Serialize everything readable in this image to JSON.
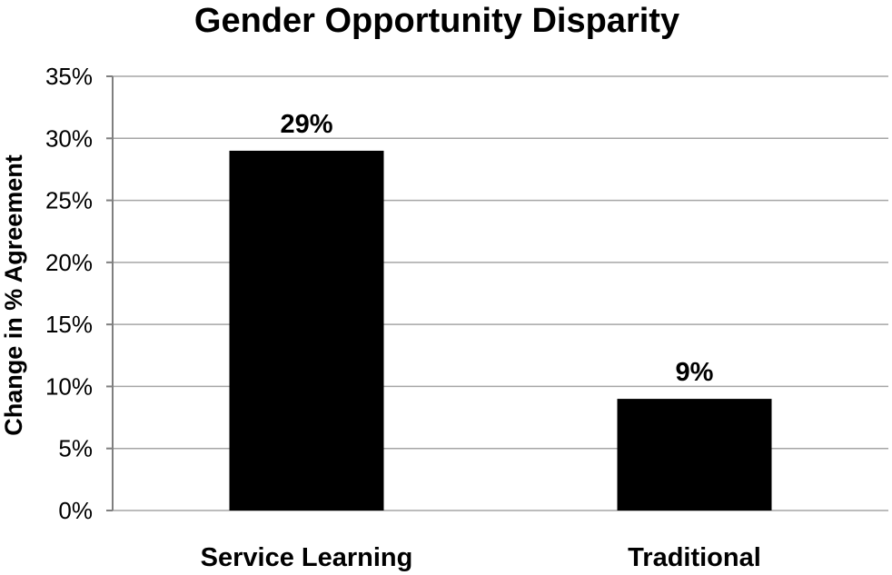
{
  "chart_data": {
    "type": "bar",
    "title": "Gender Opportunity Disparity",
    "xlabel": "",
    "ylabel": "Change in % Agreement",
    "categories": [
      "Service Learning",
      "Traditional"
    ],
    "values": [
      29,
      9
    ],
    "data_labels": [
      "29%",
      "9%"
    ],
    "ylim": [
      0,
      35
    ],
    "y_ticks": [
      0,
      5,
      10,
      15,
      20,
      25,
      30,
      35
    ],
    "y_tick_labels": [
      "0%",
      "5%",
      "10%",
      "15%",
      "20%",
      "25%",
      "30%",
      "35%"
    ],
    "grid": true,
    "legend": "none",
    "colors": {
      "bar": "#000000",
      "grid": "#a6a6a6",
      "axis": "#7f7f7f"
    }
  }
}
